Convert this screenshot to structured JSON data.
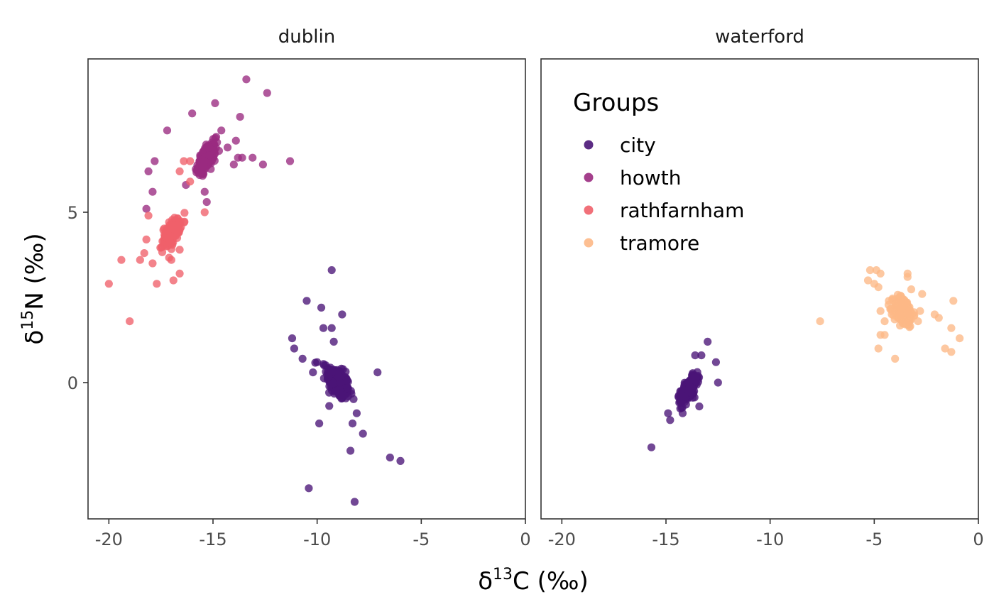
{
  "chart_data": {
    "type": "scatter",
    "facets": [
      "dublin",
      "waterford"
    ],
    "xlabel": {
      "base": "δ",
      "sup": "13",
      "rest": "C (‰)"
    },
    "ylabel": {
      "base": "δ",
      "sup": "15",
      "rest": "N (‰)"
    },
    "xlim": [
      -21,
      0
    ],
    "ylim": [
      -4,
      9.5
    ],
    "x_ticks": [
      -20,
      -15,
      -10,
      -5,
      0
    ],
    "x_tick_labels": [
      "-20",
      "-15",
      "-10",
      "-5",
      "0"
    ],
    "y_ticks": [
      0,
      5
    ],
    "y_tick_labels": [
      "0",
      "5"
    ],
    "grid": false,
    "legend": {
      "title": "Groups",
      "placement": "inside-top-left-of-waterford-panel",
      "entries": [
        "city",
        "howth",
        "rathfarnham",
        "tramore"
      ]
    },
    "colors": {
      "city": "#4a1577",
      "howth": "#9a2a80",
      "rathfarnham": "#f0606a",
      "tramore": "#fdb886"
    },
    "series": [
      {
        "name": "city",
        "facet": "dublin",
        "core": {
          "center": [
            -9.0,
            0.0
          ],
          "sd": [
            0.45,
            0.4
          ],
          "corr": -0.5,
          "n": 260
        },
        "points": [
          [
            -9.3,
            3.3
          ],
          [
            -10.5,
            2.4
          ],
          [
            -9.8,
            2.2
          ],
          [
            -8.8,
            2.0
          ],
          [
            -9.7,
            1.6
          ],
          [
            -9.3,
            1.6
          ],
          [
            -11.2,
            1.3
          ],
          [
            -11.1,
            1.0
          ],
          [
            -10.7,
            0.7
          ],
          [
            -10.0,
            0.6
          ],
          [
            -10.2,
            0.3
          ],
          [
            -9.2,
            1.2
          ],
          [
            -7.1,
            0.3
          ],
          [
            -8.1,
            -0.9
          ],
          [
            -8.3,
            -1.2
          ],
          [
            -7.8,
            -1.5
          ],
          [
            -9.9,
            -1.2
          ],
          [
            -8.4,
            -2.0
          ],
          [
            -6.5,
            -2.2
          ],
          [
            -6.0,
            -2.3
          ],
          [
            -10.4,
            -3.1
          ],
          [
            -8.2,
            -3.5
          ]
        ]
      },
      {
        "name": "howth",
        "facet": "dublin",
        "core": {
          "center": [
            -15.3,
            6.6
          ],
          "sd": [
            0.35,
            0.35
          ],
          "corr": 0.65,
          "n": 230
        },
        "points": [
          [
            -13.4,
            8.9
          ],
          [
            -12.4,
            8.5
          ],
          [
            -14.9,
            8.2
          ],
          [
            -16.0,
            7.9
          ],
          [
            -13.7,
            7.8
          ],
          [
            -17.2,
            7.4
          ],
          [
            -14.6,
            7.4
          ],
          [
            -13.9,
            7.1
          ],
          [
            -14.3,
            6.9
          ],
          [
            -17.8,
            6.5
          ],
          [
            -13.8,
            6.6
          ],
          [
            -13.6,
            6.6
          ],
          [
            -13.1,
            6.6
          ],
          [
            -12.6,
            6.4
          ],
          [
            -11.3,
            6.5
          ],
          [
            -14.0,
            6.4
          ],
          [
            -18.1,
            6.2
          ],
          [
            -16.3,
            5.8
          ],
          [
            -15.4,
            5.6
          ],
          [
            -17.9,
            5.6
          ],
          [
            -18.2,
            5.1
          ],
          [
            -17.3,
            4.2
          ],
          [
            -15.3,
            5.3
          ]
        ]
      },
      {
        "name": "rathfarnham",
        "facet": "dublin",
        "core": {
          "center": [
            -17.0,
            4.4
          ],
          "sd": [
            0.35,
            0.35
          ],
          "corr": 0.55,
          "n": 150
        },
        "points": [
          [
            -16.4,
            6.5
          ],
          [
            -16.6,
            6.2
          ],
          [
            -16.1,
            6.5
          ],
          [
            -16.1,
            5.9
          ],
          [
            -15.4,
            5.0
          ],
          [
            -18.1,
            4.9
          ],
          [
            -18.2,
            4.2
          ],
          [
            -18.3,
            3.8
          ],
          [
            -18.5,
            3.6
          ],
          [
            -19.4,
            3.6
          ],
          [
            -17.9,
            3.5
          ],
          [
            -17.0,
            3.6
          ],
          [
            -16.6,
            3.9
          ],
          [
            -16.6,
            3.2
          ],
          [
            -16.9,
            3.0
          ],
          [
            -17.7,
            2.9
          ],
          [
            -20.0,
            2.9
          ],
          [
            -19.0,
            1.8
          ]
        ]
      },
      {
        "name": "city",
        "facet": "waterford",
        "core": {
          "center": [
            -13.9,
            -0.2
          ],
          "sd": [
            0.33,
            0.33
          ],
          "corr": 0.7,
          "n": 230
        },
        "points": [
          [
            -13.0,
            1.2
          ],
          [
            -13.3,
            0.8
          ],
          [
            -13.6,
            0.8
          ],
          [
            -12.6,
            0.6
          ],
          [
            -12.5,
            0.0
          ],
          [
            -14.9,
            -0.9
          ],
          [
            -14.8,
            -1.1
          ],
          [
            -13.4,
            -0.7
          ],
          [
            -14.2,
            -0.9
          ],
          [
            -15.7,
            -1.9
          ]
        ]
      },
      {
        "name": "tramore",
        "facet": "waterford",
        "core": {
          "center": [
            -3.6,
            2.1
          ],
          "sd": [
            0.38,
            0.35
          ],
          "corr": -0.2,
          "n": 230
        },
        "points": [
          [
            -5.2,
            3.3
          ],
          [
            -4.9,
            3.3
          ],
          [
            -4.7,
            3.2
          ],
          [
            -3.4,
            3.2
          ],
          [
            -3.4,
            3.1
          ],
          [
            -5.3,
            3.0
          ],
          [
            -5.0,
            2.9
          ],
          [
            -4.8,
            2.8
          ],
          [
            -2.7,
            2.6
          ],
          [
            -1.2,
            2.4
          ],
          [
            -4.3,
            2.4
          ],
          [
            -4.7,
            2.1
          ],
          [
            -2.8,
            2.1
          ],
          [
            -2.1,
            2.0
          ],
          [
            -1.9,
            1.9
          ],
          [
            -7.6,
            1.8
          ],
          [
            -4.5,
            1.8
          ],
          [
            -2.9,
            1.8
          ],
          [
            -1.3,
            1.6
          ],
          [
            -4.7,
            1.4
          ],
          [
            -4.5,
            1.4
          ],
          [
            -0.9,
            1.3
          ],
          [
            -4.8,
            1.0
          ],
          [
            -1.6,
            1.0
          ],
          [
            -1.3,
            0.9
          ],
          [
            -4.0,
            0.7
          ]
        ]
      }
    ]
  }
}
